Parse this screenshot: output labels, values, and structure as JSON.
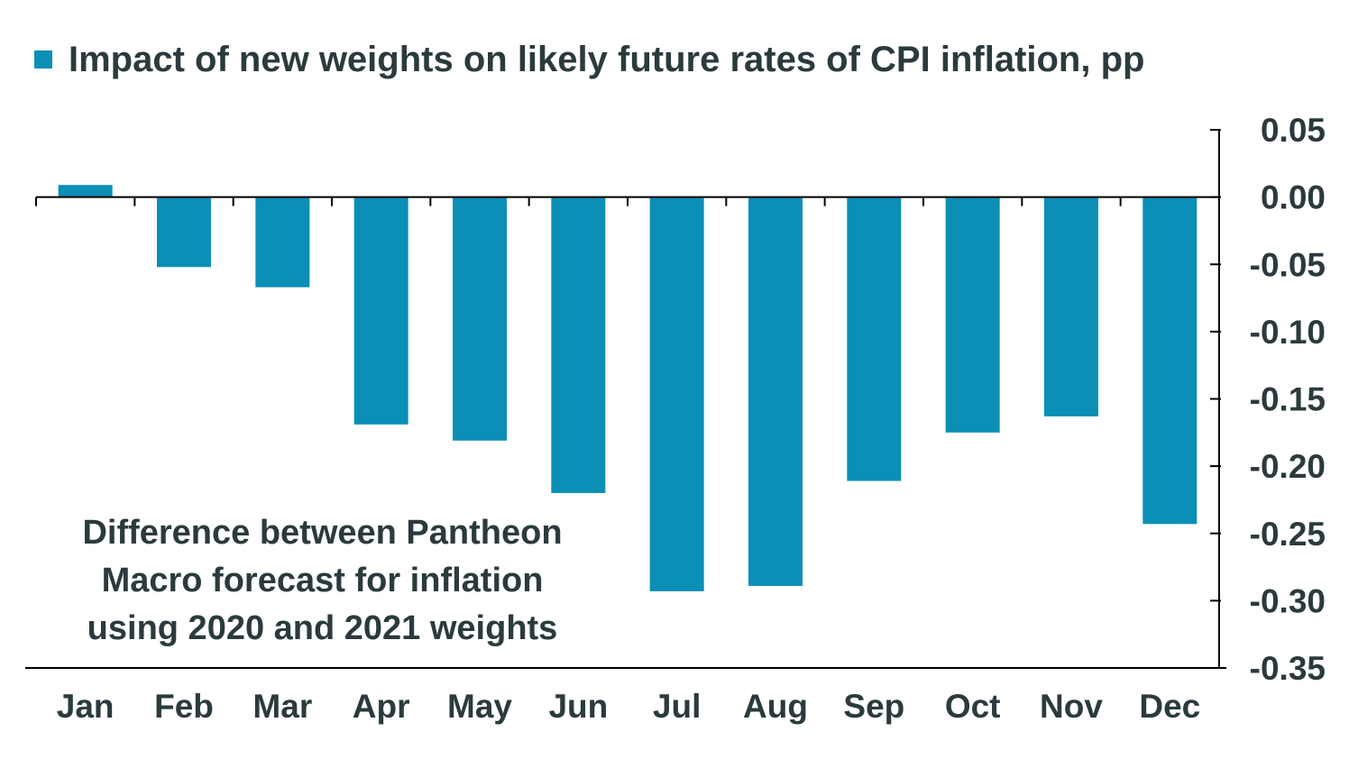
{
  "colors": {
    "bar": "#0b8fb6",
    "text": "#2b3a3d",
    "axis": "#000000"
  },
  "legend": {
    "label": "Impact of new weights on likely future rates of CPI inflation, pp"
  },
  "annotation": {
    "lines": [
      "Difference between Pantheon",
      "Macro forecast for inflation",
      "using 2020 and 2021 weights"
    ]
  },
  "chart_data": {
    "type": "bar",
    "categories": [
      "Jan",
      "Feb",
      "Mar",
      "Apr",
      "May",
      "Jun",
      "Jul",
      "Aug",
      "Sep",
      "Oct",
      "Nov",
      "Dec"
    ],
    "series": [
      {
        "name": "Impact of new weights on likely future rates of CPI inflation, pp",
        "values": [
          0.009,
          -0.052,
          -0.067,
          -0.169,
          -0.181,
          -0.22,
          -0.293,
          -0.289,
          -0.211,
          -0.175,
          -0.163,
          -0.243
        ]
      }
    ],
    "ylim": [
      -0.35,
      0.05
    ],
    "yticks": [
      "0.05",
      "0.00",
      "-0.05",
      "-0.10",
      "-0.15",
      "-0.20",
      "-0.25",
      "-0.30",
      "-0.35"
    ],
    "ytick_values": [
      0.05,
      0.0,
      -0.05,
      -0.1,
      -0.15,
      -0.2,
      -0.25,
      -0.3,
      -0.35
    ],
    "y_axis_side": "right",
    "grid": false,
    "legend_position": "top-left"
  }
}
